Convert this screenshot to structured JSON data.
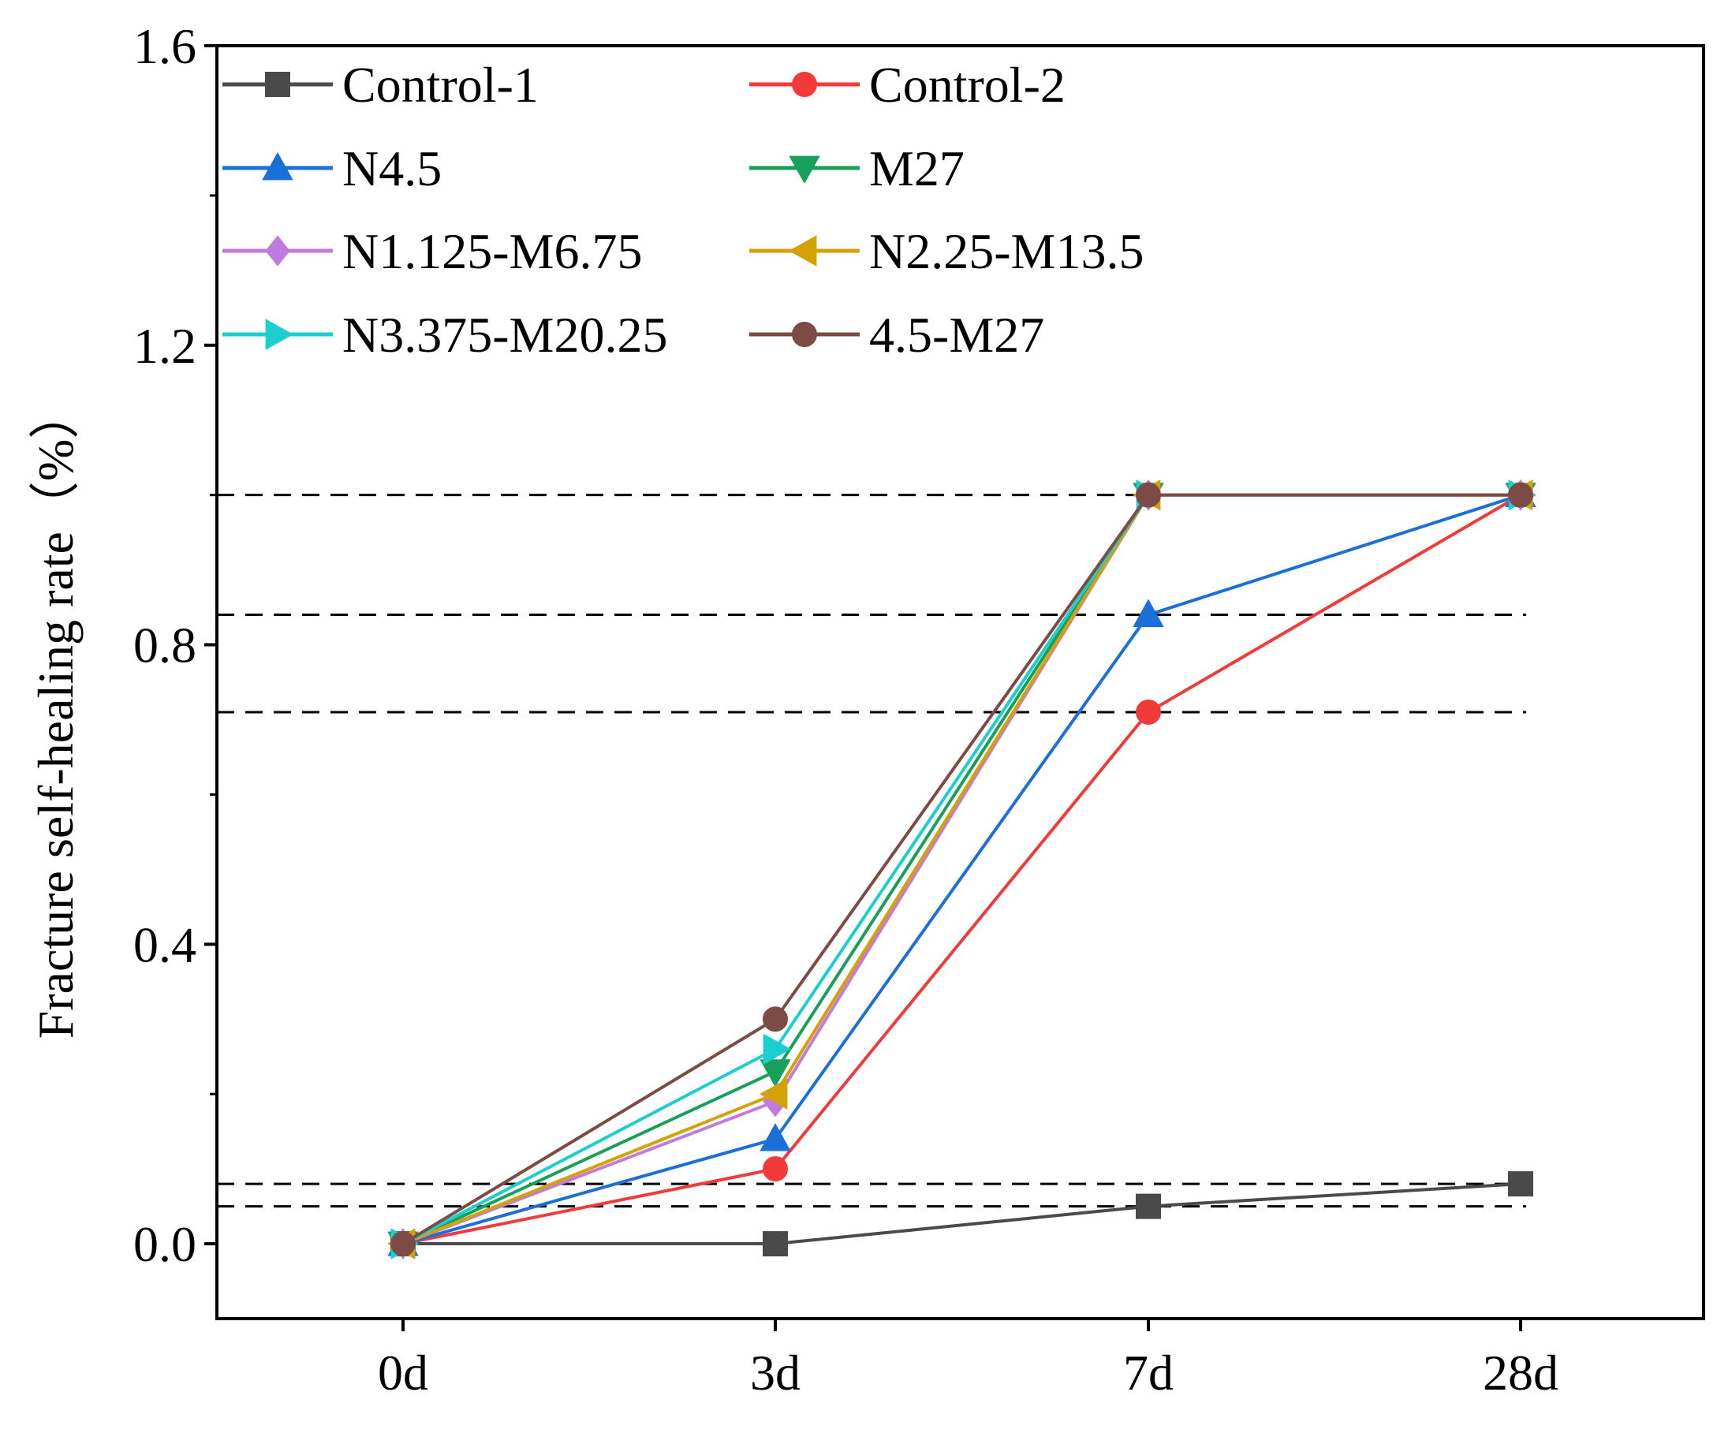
{
  "chart_data": {
    "type": "line",
    "title": "",
    "xlabel": "",
    "ylabel": "Fracture self-healing rate（%）",
    "categories": [
      "0d",
      "3d",
      "7d",
      "28d"
    ],
    "ylim": [
      -0.1,
      1.6
    ],
    "yticks": [
      "0.0",
      "0.4",
      "0.8",
      "1.2",
      "1.6"
    ],
    "ytick_values": [
      0,
      0.4,
      0.8,
      1.2,
      1.6
    ],
    "reference_lines": [
      1.0,
      0.84,
      0.71,
      0.08,
      0.05
    ],
    "legend_position": "top-left",
    "series": [
      {
        "name": "Control-1",
        "values": [
          0,
          0,
          0.05,
          0.08
        ],
        "color": "#4a4a4a",
        "marker": "square"
      },
      {
        "name": "Control-2",
        "values": [
          0,
          0.1,
          0.71,
          1.0
        ],
        "color": "#f23a3a",
        "marker": "circle"
      },
      {
        "name": "N4.5",
        "values": [
          0,
          0.14,
          0.84,
          1.0
        ],
        "color": "#1a6fd8",
        "marker": "triangle-up"
      },
      {
        "name": "M27",
        "values": [
          0,
          0.23,
          1.0,
          1.0
        ],
        "color": "#18a05a",
        "marker": "triangle-down"
      },
      {
        "name": "N1.125-M6.75",
        "values": [
          0,
          0.19,
          1.0,
          1.0
        ],
        "color": "#c17be0",
        "marker": "diamond"
      },
      {
        "name": "N2.25-M13.5",
        "values": [
          0,
          0.2,
          1.0,
          1.0
        ],
        "color": "#d4a106",
        "marker": "triangle-left"
      },
      {
        "name": "N3.375-M20.25",
        "values": [
          0,
          0.26,
          1.0,
          1.0
        ],
        "color": "#1ccfcf",
        "marker": "triangle-right"
      },
      {
        "name": "4.5-M27",
        "values": [
          0,
          0.3,
          1.0,
          1.0
        ],
        "color": "#7d4b45",
        "marker": "circle"
      }
    ]
  }
}
